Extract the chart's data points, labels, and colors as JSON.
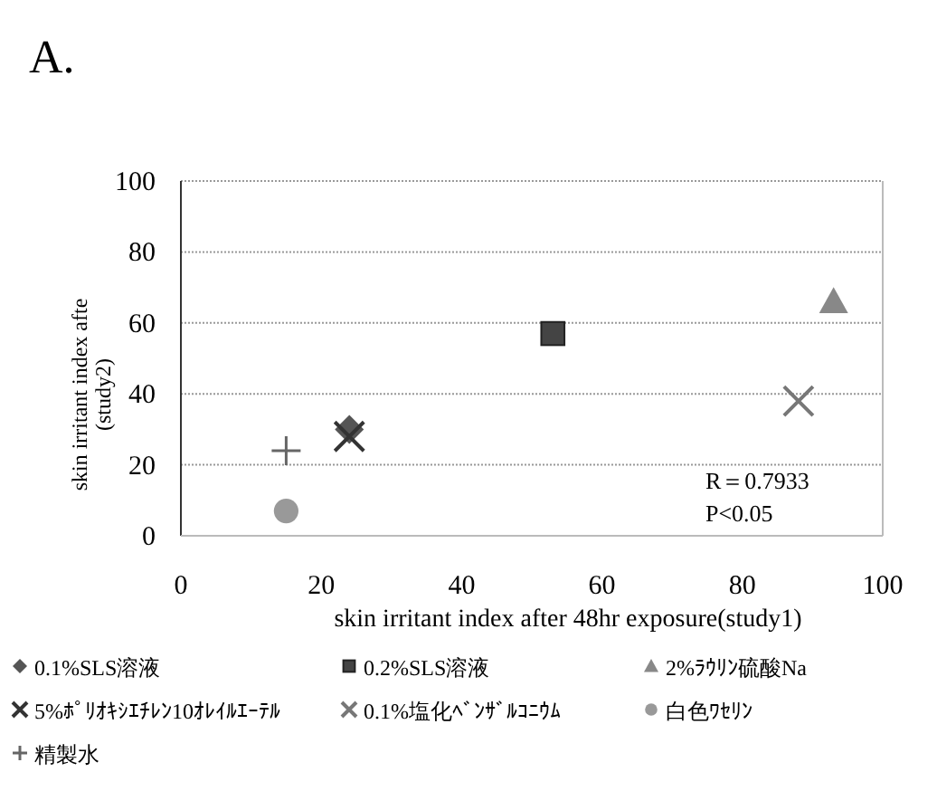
{
  "chart_data": {
    "type": "scatter",
    "title": "A.",
    "xlabel": "skin irritant index after 48hr exposure(study1)",
    "ylabel": "skin irritant index afte\n(study2)",
    "xlim": [
      0,
      100
    ],
    "ylim": [
      0,
      100
    ],
    "xticks": [
      0,
      20,
      40,
      60,
      80,
      100
    ],
    "yticks": [
      0,
      20,
      40,
      60,
      80,
      100
    ],
    "grid": "y",
    "legend": "bottom",
    "annotations": [
      "R＝0.7933",
      "P<0.05"
    ],
    "series": [
      {
        "name": "0.1%SLS溶液",
        "color": "#555555",
        "marker": "diamond",
        "x": [
          24
        ],
        "values": [
          30
        ]
      },
      {
        "name": "0.2%SLS溶液",
        "color": "#444444",
        "marker": "square",
        "x": [
          53
        ],
        "values": [
          57
        ]
      },
      {
        "name": "2%ﾗｳﾘﾝ硫酸Na",
        "color": "#888888",
        "marker": "triangle",
        "x": [
          93
        ],
        "values": [
          66
        ]
      },
      {
        "name": "5%ﾎﾟﾘｵｷｼｴﾁﾚﾝ10ｵﾚｲﾙｴｰﾃﾙ",
        "color": "#333333",
        "marker": "cross",
        "x": [
          24
        ],
        "values": [
          28
        ]
      },
      {
        "name": "0.1%塩化ﾍﾞﾝｻﾞﾙｺﾆｳﾑ",
        "color": "#777777",
        "marker": "cross",
        "x": [
          88
        ],
        "values": [
          38
        ]
      },
      {
        "name": "白色ﾜｾﾘﾝ",
        "color": "#999999",
        "marker": "circle",
        "x": [
          15
        ],
        "values": [
          7
        ]
      },
      {
        "name": "精製水",
        "color": "#666666",
        "marker": "plus",
        "x": [
          15
        ],
        "values": [
          24
        ]
      }
    ]
  }
}
